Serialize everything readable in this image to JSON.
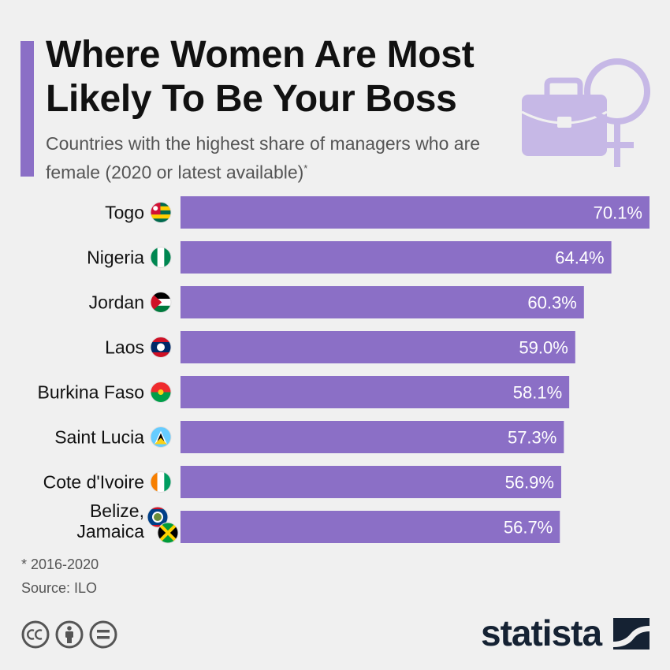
{
  "title": "Where Women Are Most Likely To Be Your Boss",
  "subtitle": "Countries with the highest share of managers who are female (2020 or latest available)",
  "subtitle_marker": "*",
  "footnote": "* 2016-2020",
  "source": "Source: ILO",
  "brand": "statista",
  "icons": [
    "briefcase-icon",
    "female-symbol-icon",
    "cc-icon",
    "attribution-icon",
    "no-derivatives-icon",
    "statista-logo-icon"
  ],
  "colors": {
    "bar": "#8b6fc6",
    "accent": "#8b6fc6",
    "illustration": "#c6b8e6",
    "background": "#f0f0f0"
  },
  "chart_data": {
    "type": "bar",
    "orientation": "horizontal",
    "categories": [
      "Togo",
      "Nigeria",
      "Jordan",
      "Laos",
      "Burkina Faso",
      "Saint Lucia",
      "Cote d'Ivoire",
      "Belize,\nJamaica"
    ],
    "values": [
      70.1,
      64.4,
      60.3,
      59.0,
      58.1,
      57.3,
      56.9,
      56.7
    ],
    "value_labels": [
      "70.1%",
      "64.4%",
      "60.3%",
      "59.0%",
      "58.1%",
      "57.3%",
      "56.9%",
      "56.7%"
    ],
    "flags": [
      "togo-flag-icon",
      "nigeria-flag-icon",
      "jordan-flag-icon",
      "laos-flag-icon",
      "burkina-faso-flag-icon",
      "saint-lucia-flag-icon",
      "cote-divoire-flag-icon",
      "belize-jamaica-flag-icon"
    ],
    "unit": "%",
    "grid": false,
    "legend": "none"
  }
}
